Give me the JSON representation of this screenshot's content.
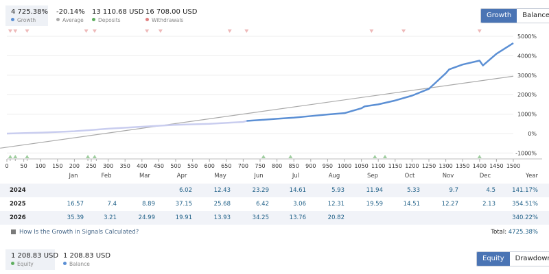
{
  "summary": [
    {
      "value": "4 725.38%",
      "label": "Growth",
      "color": "#5b8fd4",
      "active": true
    },
    {
      "value": "-20.14%",
      "label": "Average",
      "color": "#aaaaaa",
      "active": false
    },
    {
      "value": "13 110.68 USD",
      "label": "Deposits",
      "color": "#5fae5f",
      "active": false
    },
    {
      "value": "16 708.00 USD",
      "label": "Withdrawals",
      "color": "#e08080",
      "active": false
    }
  ],
  "toggle_top": {
    "active": "Growth",
    "inactive": "Balance"
  },
  "chart_data": {
    "type": "line",
    "x_ticks": [
      0,
      50,
      100,
      150,
      200,
      250,
      300,
      350,
      400,
      450,
      500,
      550,
      600,
      650,
      700,
      750,
      800,
      850,
      900,
      950,
      1000,
      1050,
      1100,
      1150,
      1200,
      1250,
      1300,
      1350,
      1400,
      1450,
      1500
    ],
    "x_extra_ticks": [
      10,
      25,
      60,
      240,
      265
    ],
    "y_ticks": [
      5000,
      4000,
      3000,
      2000,
      1000,
      0,
      -1000
    ],
    "y_tick_labels": [
      "5000%",
      "4000%",
      "3000%",
      "2000%",
      "1000%",
      "0%",
      "-1000%"
    ],
    "xlim": [
      0,
      1500
    ],
    "ylim": [
      -1200,
      5300
    ],
    "grid": true,
    "series": [
      {
        "name": "Growth",
        "color": "#5b8fd4",
        "x": [
          0,
          100,
          200,
          300,
          400,
          500,
          600,
          700,
          710,
          760,
          800,
          850,
          900,
          950,
          1000,
          1050,
          1060,
          1100,
          1150,
          1200,
          1250,
          1300,
          1310,
          1350,
          1400,
          1410,
          1450,
          1500
        ],
        "y": [
          0,
          50,
          120,
          250,
          350,
          450,
          500,
          600,
          650,
          710,
          760,
          820,
          900,
          980,
          1050,
          1300,
          1400,
          1500,
          1700,
          1950,
          2300,
          3100,
          3300,
          3550,
          3750,
          3500,
          4100,
          4650
        ]
      },
      {
        "name": "Average",
        "color": "#aaaaaa",
        "x": [
          -20,
          1500
        ],
        "y": [
          -750,
          2950
        ]
      }
    ],
    "deposits_x": [
      10,
      25,
      60,
      240,
      260,
      760,
      840,
      1090,
      1120,
      1400
    ],
    "withdrawals_x": [
      10,
      25,
      60,
      235,
      260,
      415,
      455,
      660,
      710,
      1080,
      1175,
      1400
    ],
    "deposit_color": "#5fae5f",
    "withdrawal_color": "#e08080"
  },
  "table": {
    "months": [
      "Jan",
      "Feb",
      "Mar",
      "Apr",
      "May",
      "Jun",
      "Jul",
      "Aug",
      "Sep",
      "Oct",
      "Nov",
      "Dec"
    ],
    "year_header": "Year",
    "rows": [
      {
        "year": "2024",
        "values": [
          "",
          "",
          "",
          "6.02",
          "12.43",
          "23.29",
          "14.61",
          "5.93",
          "11.94",
          "5.33",
          "9.7",
          "4.5"
        ],
        "total": "141.17%"
      },
      {
        "year": "2025",
        "values": [
          "16.57",
          "7.4",
          "8.89",
          "37.15",
          "25.68",
          "6.42",
          "3.06",
          "12.31",
          "19.59",
          "14.51",
          "12.27",
          "2.13"
        ],
        "total": "354.51%"
      },
      {
        "year": "2026",
        "values": [
          "35.39",
          "3.21",
          "24.99",
          "19.91",
          "13.93",
          "34.25",
          "13.76",
          "20.82",
          "",
          "",
          "",
          ""
        ],
        "total": "340.22%"
      }
    ]
  },
  "howto": "How Is the Growth in Signals Calculated?",
  "total": {
    "label": "Total:",
    "value": "4725.38%"
  },
  "summary2": [
    {
      "value": "1 208.83 USD",
      "label": "Equity",
      "color": "#5fae5f",
      "active": true
    },
    {
      "value": "1 208.83 USD",
      "label": "Balance",
      "color": "#5b8fd4",
      "active": false
    }
  ],
  "toggle_bottom": {
    "active": "Equity",
    "inactive": "Drawdown"
  }
}
